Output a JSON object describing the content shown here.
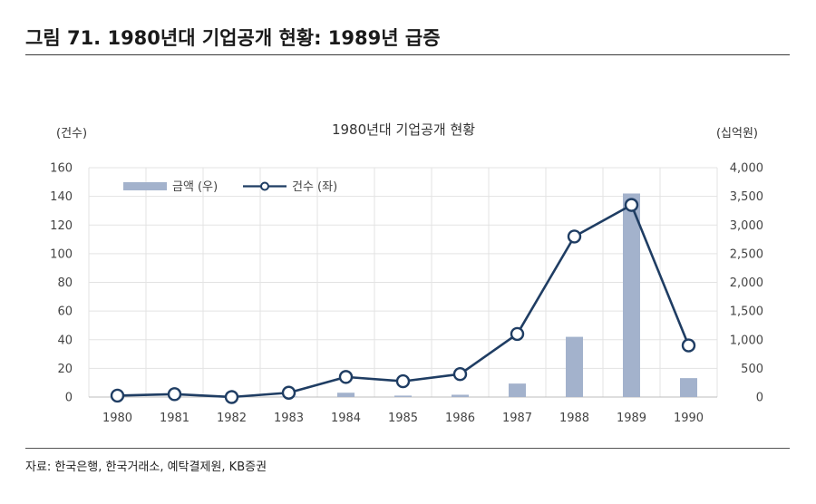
{
  "figure_title": "그림 71. 1980년대 기업공개 현황: 1989년 급증",
  "source": "자료: 한국은행, 한국거래소, 예탁결제원, KB증권",
  "chart_data": {
    "type": "bar+line",
    "title": "1980년대 기업공개 현황",
    "categories": [
      "1980",
      "1981",
      "1982",
      "1983",
      "1984",
      "1985",
      "1986",
      "1987",
      "1988",
      "1989",
      "1990"
    ],
    "left_axis": {
      "unit_label": "(건수)",
      "range": [
        0,
        160
      ],
      "ticks": [
        "0",
        "20",
        "40",
        "60",
        "80",
        "100",
        "120",
        "140",
        "160"
      ]
    },
    "right_axis": {
      "unit_label": "(십억원)",
      "range": [
        0,
        4000
      ],
      "ticks": [
        "0",
        "500",
        "1,000",
        "1,500",
        "2,000",
        "2,500",
        "3,000",
        "3,500",
        "4,000"
      ]
    },
    "series": [
      {
        "name": "금액 (우)",
        "type": "bar",
        "axis": "right",
        "color": "#a3b2cc",
        "values": [
          0,
          0,
          0,
          10,
          75,
          25,
          40,
          235,
          1050,
          3550,
          330
        ]
      },
      {
        "name": "건수 (좌)",
        "type": "line",
        "axis": "left",
        "color": "#1f3d63",
        "values": [
          1,
          2,
          0,
          3,
          14,
          11,
          16,
          44,
          112,
          134,
          36
        ]
      }
    ],
    "grid": true,
    "legend_position": "top-left"
  }
}
